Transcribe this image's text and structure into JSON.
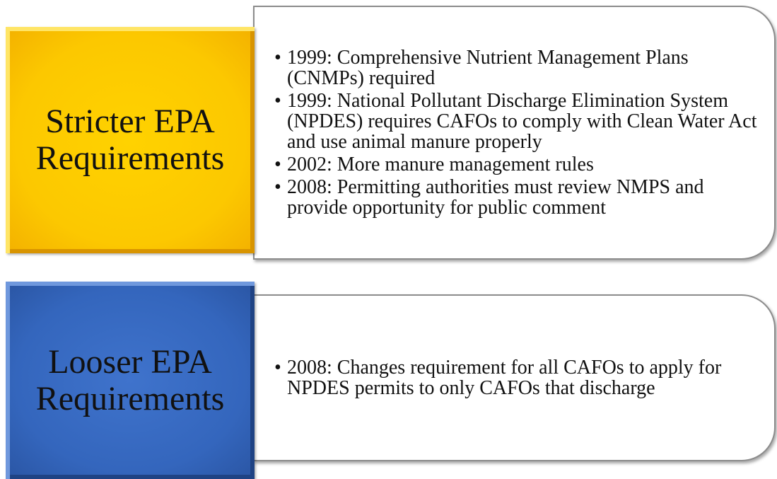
{
  "groups": [
    {
      "label": "Stricter EPA Requirements",
      "bullets": [
        "1999: Comprehensive Nutrient Management Plans (CNMPs) required",
        "1999: National Pollutant Discharge Elimination System (NPDES) requires CAFOs to comply with Clean Water Act and use animal manure properly",
        "2002: More manure management rules",
        "2008: Permitting authorities must review NMPS and provide opportunity for public comment"
      ]
    },
    {
      "label": "Looser EPA Requirements",
      "bullets": [
        "2008: Changes requirement for all CAFOs to apply for NPDES permits to only CAFOs that discharge"
      ]
    }
  ]
}
